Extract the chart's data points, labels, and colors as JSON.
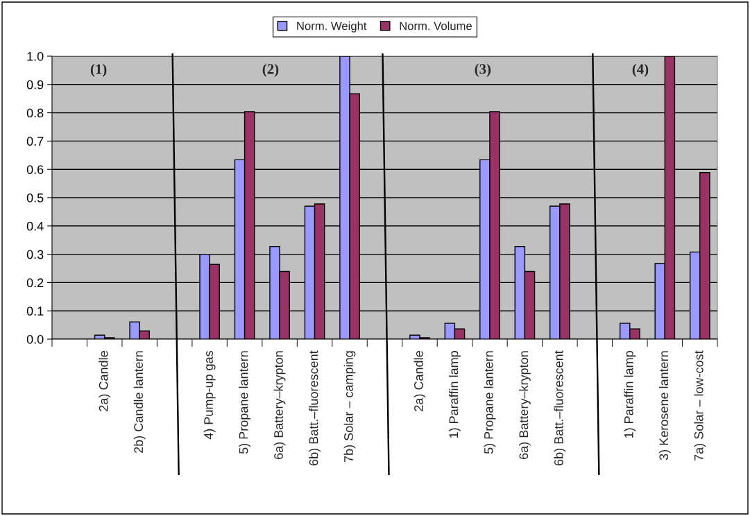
{
  "chart_data": {
    "type": "bar",
    "categories": [
      null,
      "2a) Candle",
      "2b) Candle lantern",
      null,
      "4) Pump-up gas",
      "5) Propane lantern",
      "6a) Battery–krypton",
      "6b) Batt.–fluorescent",
      "7b) Solar – camping",
      null,
      "2a) Candle",
      "1) Paraffin lamp",
      "5) Propane lantern",
      "6a) Battery–krypton",
      "6b) Batt.–fluorescent",
      null,
      "1) Paraffin lamp",
      "3) Kerosene lantern",
      "7a) Solar – low-cost"
    ],
    "series": [
      {
        "name": "Norm. Weight",
        "color": "#9999ff",
        "values": [
          null,
          0.014,
          0.061,
          null,
          0.3,
          0.634,
          0.327,
          0.47,
          1.0,
          null,
          0.014,
          0.056,
          0.634,
          0.327,
          0.47,
          null,
          0.056,
          0.267,
          0.308
        ]
      },
      {
        "name": "Norm. Volume",
        "color": "#993366",
        "values": [
          null,
          0.005,
          0.029,
          null,
          0.264,
          0.804,
          0.239,
          0.478,
          0.867,
          null,
          0.005,
          0.036,
          0.804,
          0.239,
          0.478,
          null,
          0.036,
          1.0,
          0.589
        ]
      }
    ],
    "annotations": [
      "(1)",
      "(2)",
      "(3)",
      "(4)"
    ],
    "ylim": [
      0,
      1.0
    ],
    "yticks": [
      {
        "value": 0,
        "label": "0.0"
      },
      {
        "value": 0.1,
        "label": "0.1"
      },
      {
        "value": 0.2,
        "label": "0.2"
      },
      {
        "value": 0.3,
        "label": "0.3"
      },
      {
        "value": 0.4,
        "label": "0.4"
      },
      {
        "value": 0.5,
        "label": "0.5"
      },
      {
        "value": 0.6,
        "label": "0.6"
      },
      {
        "value": 0.7,
        "label": "0.7"
      },
      {
        "value": 0.8,
        "label": "0.8"
      },
      {
        "value": 0.9,
        "label": "0.9"
      },
      {
        "value": 1.0,
        "label": "1.0"
      }
    ],
    "grid": "y",
    "legend": "top"
  }
}
